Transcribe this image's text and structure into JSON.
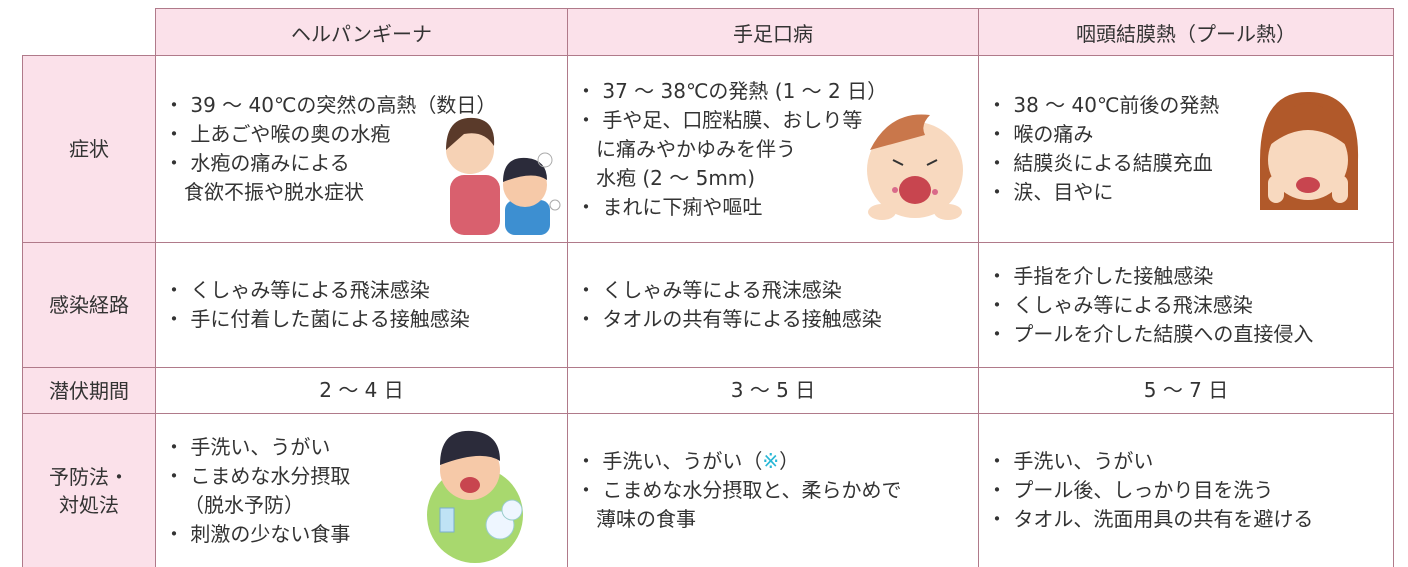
{
  "table": {
    "columns": [
      "ヘルパンギーナ",
      "手足口病",
      "咽頭結膜熱（プール熱）"
    ],
    "rows": [
      {
        "label": [
          "症状"
        ],
        "cells": [
          [
            "・ 39 ～ 40℃の突然の高熱（数日）",
            "・ 上あごや喉の奥の水疱",
            "・ 水疱の痛みによる",
            "食欲不振や脱水症状"
          ],
          [
            "・ 37 ～ 38℃の発熱 (1 ～ 2 日）",
            "・ 手や足、口腔粘膜、おしり等",
            "に痛みやかゆみを伴う",
            "水疱 (2 ～ 5mm)",
            "・ まれに下痢や嘔吐"
          ],
          [
            "・ 38 ～ 40℃前後の発熱",
            "・ 喉の痛み",
            "・ 結膜炎による結膜充血",
            "・ 涙、目やに"
          ]
        ]
      },
      {
        "label": [
          "感染経路"
        ],
        "cells": [
          [
            "・ くしゃみ等による飛沫感染",
            "・ 手に付着した菌による接触感染"
          ],
          [
            "・ くしゃみ等による飛沫感染",
            "・ タオルの共有等による接触感染"
          ],
          [
            "・ 手指を介した接触感染",
            "・ くしゃみ等による飛沫感染",
            "・ プールを介した結膜への直接侵入"
          ]
        ]
      },
      {
        "label": [
          "潜伏期間"
        ],
        "cells": [
          [
            "2 ～ 4 日"
          ],
          [
            "3 ～ 5 日"
          ],
          [
            "5 ～ 7 日"
          ]
        ]
      },
      {
        "label": [
          "予防法・",
          "対処法"
        ],
        "cells": [
          [
            "・ 手洗い、うがい",
            "・ こまめな水分摂取",
            "（脱水予防）",
            "・ 刺激の少ない食事"
          ],
          [
            {
              "text": "・ 手洗い、うがい（",
              "note": "※",
              "close": "）"
            },
            "・ こまめな水分摂取と、柔らかめで",
            "薄味の食事"
          ],
          [
            "・ 手洗い、うがい",
            "・ プール後、しっかり目を洗う",
            "・ タオル、洗面用具の共有を避ける"
          ]
        ]
      }
    ]
  }
}
